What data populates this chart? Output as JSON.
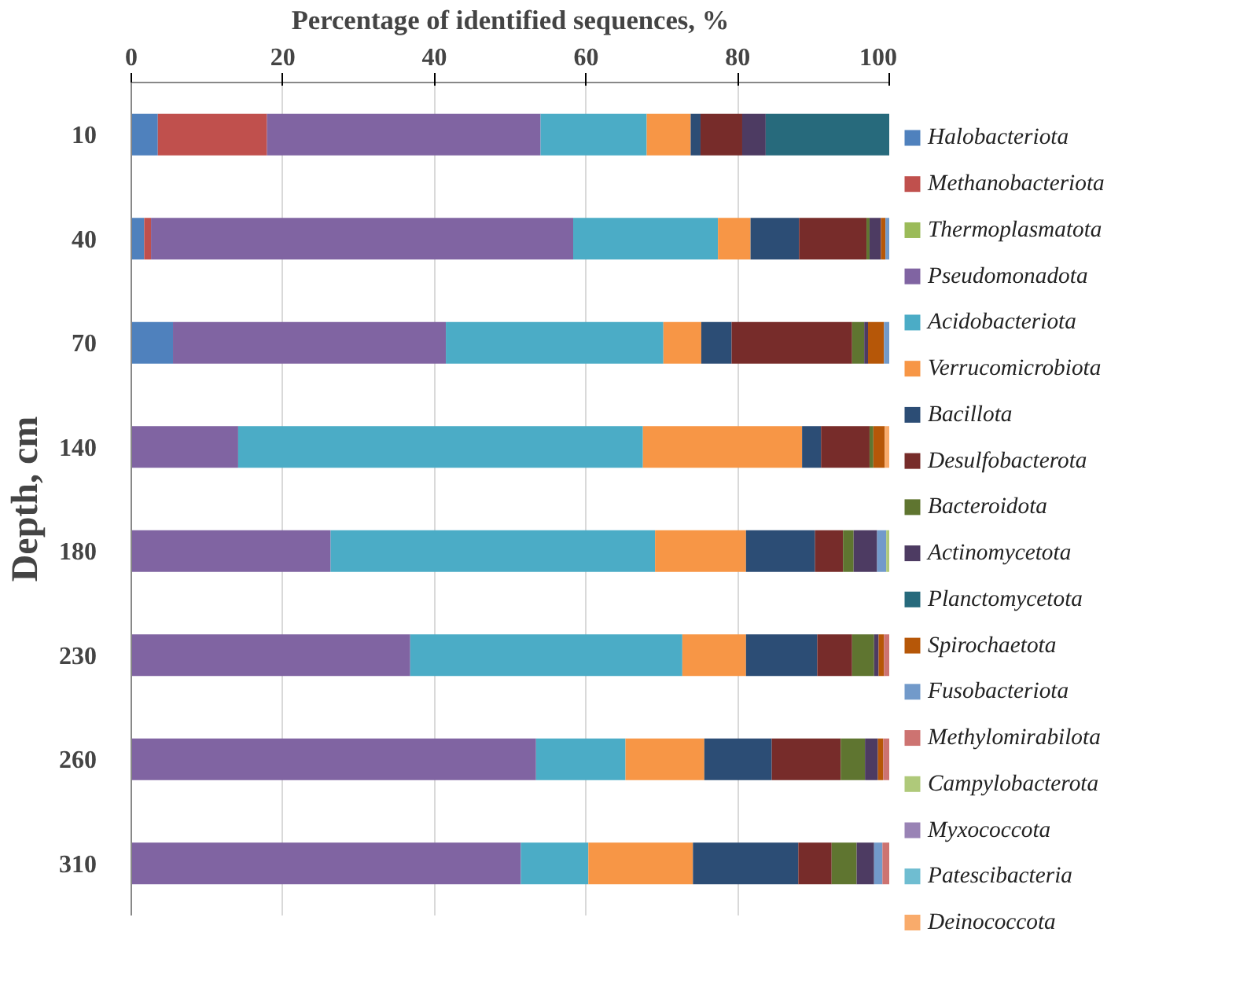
{
  "chart_data": {
    "type": "bar",
    "orientation": "horizontal",
    "stacked": true,
    "xlabel": "Percentage of identified sequences, %",
    "ylabel": "Depth, cm",
    "categories": [
      "10",
      "40",
      "70",
      "140",
      "180",
      "230",
      "260",
      "310"
    ],
    "xlim": [
      0,
      100
    ],
    "xticks": [
      0,
      20,
      40,
      60,
      80,
      100
    ],
    "grid": "x",
    "legend": "right",
    "series": [
      {
        "name": "Halobacteriota",
        "color": "#4f81bd",
        "values": [
          3.5,
          1.7,
          5.5,
          null,
          null,
          null,
          null,
          null
        ]
      },
      {
        "name": "Methanobacteriota",
        "color": "#c0504d",
        "values": [
          14.4,
          0.9,
          null,
          null,
          null,
          null,
          null,
          null
        ]
      },
      {
        "name": "Thermoplasmatota",
        "color": "#9bbb59",
        "values": [
          0,
          0,
          0,
          0,
          0,
          0,
          0,
          0
        ]
      },
      {
        "name": "Pseudomonadota",
        "color": "#8064a2",
        "values": [
          36.1,
          55.7,
          36.0,
          14.1,
          26.3,
          36.8,
          53.4,
          51.4
        ]
      },
      {
        "name": "Acidobacteriota",
        "color": "#4bacc6",
        "values": [
          14.0,
          19.1,
          28.7,
          53.4,
          42.8,
          35.9,
          11.8,
          8.9
        ]
      },
      {
        "name": "Verrucomicrobiota",
        "color": "#f79646",
        "values": [
          5.8,
          4.3,
          5.0,
          21.0,
          12.0,
          8.4,
          10.4,
          13.8
        ]
      },
      {
        "name": "Bacillota",
        "color": "#2c4d75",
        "values": [
          1.3,
          6.4,
          4.0,
          2.5,
          9.1,
          9.4,
          8.9,
          13.9
        ]
      },
      {
        "name": "Desulfobacterota",
        "color": "#772c2a",
        "values": [
          5.5,
          8.9,
          15.9,
          6.4,
          3.7,
          4.6,
          9.1,
          4.4
        ]
      },
      {
        "name": "Bacteroidota",
        "color": "#5f7530",
        "values": [
          null,
          0.4,
          1.6,
          0.5,
          1.4,
          2.9,
          3.2,
          3.3
        ]
      },
      {
        "name": "Actinomycetota",
        "color": "#4d3b62",
        "values": [
          3.1,
          1.5,
          0.5,
          null,
          3.1,
          0.6,
          1.7,
          2.3
        ]
      },
      {
        "name": "Planctomycetota",
        "color": "#276a7c",
        "values": [
          16.3,
          null,
          null,
          null,
          null,
          null,
          null,
          null
        ]
      },
      {
        "name": "Spirochaetota",
        "color": "#b65708",
        "values": [
          null,
          0.6,
          2.1,
          1.5,
          null,
          0.7,
          0.7,
          null
        ]
      },
      {
        "name": "Fusobacteriota",
        "color": "#729aca",
        "values": [
          null,
          0.5,
          0.7,
          null,
          1.2,
          null,
          null,
          1.1
        ]
      },
      {
        "name": "Methylomirabilota",
        "color": "#cd7371",
        "values": [
          null,
          null,
          null,
          null,
          null,
          0.7,
          0.8,
          0.9
        ]
      },
      {
        "name": "Campylobacterota",
        "color": "#afc97a",
        "values": [
          null,
          null,
          null,
          null,
          0.4,
          null,
          null,
          null
        ]
      },
      {
        "name": "Myxococcota",
        "color": "#9983b5",
        "values": [
          0,
          0,
          0,
          0,
          0,
          0,
          0,
          0
        ]
      },
      {
        "name": "Patescibacteria",
        "color": "#6fbdd1",
        "values": [
          0,
          0,
          0,
          0,
          0,
          0,
          0,
          0
        ]
      },
      {
        "name": "Deinococcota",
        "color": "#f9ab6b",
        "values": [
          null,
          null,
          null,
          0.6,
          null,
          null,
          null,
          null
        ]
      }
    ]
  }
}
